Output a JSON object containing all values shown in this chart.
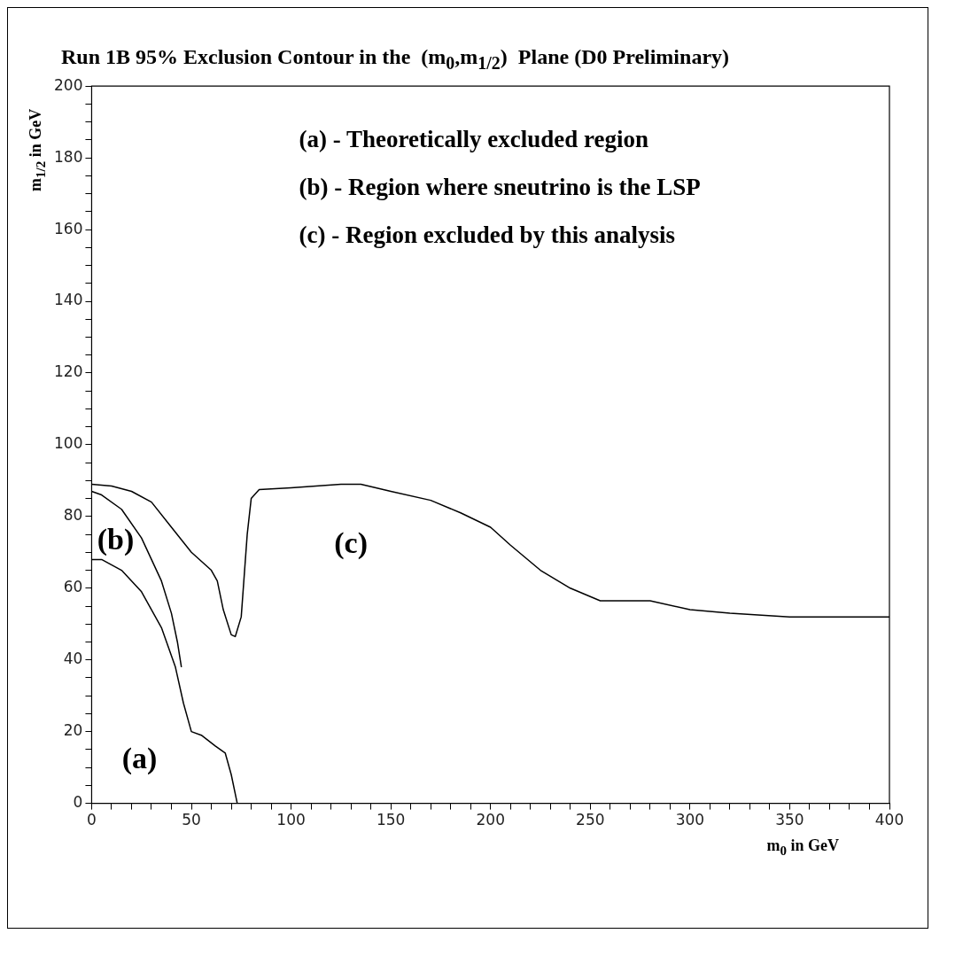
{
  "chart_data": {
    "type": "line",
    "title": "Run 1B 95% Exclusion Contour in the  (m$_{0}$,m$_{1/2}$)  Plane (D0 Preliminary)",
    "xlabel": "m$_{0}$ in GeV",
    "ylabel": "m$_{1/2}$ in GeV",
    "series": [
      {
        "color": "#000000",
        "x": [
          0,
          5,
          15,
          25,
          35,
          42,
          46,
          50,
          55,
          62,
          67,
          70,
          73
        ],
        "values": [
          68,
          68,
          65,
          59,
          49,
          38,
          28,
          20,
          19,
          16,
          14,
          8,
          0
        ]
      },
      {
        "color": "#000000",
        "x": [
          0,
          5,
          15,
          25,
          35,
          40,
          43,
          45
        ],
        "values": [
          87,
          86,
          82,
          74,
          62,
          53,
          45,
          38
        ]
      },
      {
        "color": "#000000",
        "x": [
          0,
          10,
          20,
          30,
          40,
          50,
          60,
          63,
          66,
          70,
          72,
          75,
          78,
          80,
          84,
          100,
          125,
          135,
          150,
          170,
          185,
          200,
          210,
          225,
          240,
          255,
          270,
          280,
          300,
          320,
          350,
          400
        ],
        "values": [
          89,
          88.5,
          87,
          84,
          77,
          70,
          65,
          62,
          54,
          47,
          46.5,
          52,
          75,
          85,
          87.5,
          88,
          89,
          89,
          87,
          84.5,
          81,
          77,
          72,
          65,
          60,
          56.5,
          56.5,
          56.5,
          54,
          53,
          52,
          52
        ]
      }
    ],
    "xlim": [
      0,
      400
    ],
    "ylim": [
      0,
      200
    ],
    "xticks": [
      0,
      {
        "value": 10,
        "label": null
      },
      {
        "value": 20,
        "label": null
      },
      {
        "value": 30,
        "label": null
      },
      {
        "value": 40,
        "label": null
      },
      50,
      {
        "value": 60,
        "label": null
      },
      {
        "value": 70,
        "label": null
      },
      {
        "value": 80,
        "label": null
      },
      {
        "value": 90,
        "label": null
      },
      100,
      {
        "value": 110,
        "label": null
      },
      {
        "value": 120,
        "label": null
      },
      {
        "value": 130,
        "label": null
      },
      {
        "value": 140,
        "label": null
      },
      150,
      {
        "value": 160,
        "label": null
      },
      {
        "value": 170,
        "label": null
      },
      {
        "value": 180,
        "label": null
      },
      {
        "value": 190,
        "label": null
      },
      200,
      {
        "value": 210,
        "label": null
      },
      {
        "value": 220,
        "label": null
      },
      {
        "value": 230,
        "label": null
      },
      {
        "value": 240,
        "label": null
      },
      250,
      {
        "value": 260,
        "label": null
      },
      {
        "value": 270,
        "label": null
      },
      {
        "value": 280,
        "label": null
      },
      {
        "value": 290,
        "label": null
      },
      300,
      {
        "value": 310,
        "label": null
      },
      {
        "value": 320,
        "label": null
      },
      {
        "value": 330,
        "label": null
      },
      {
        "value": 340,
        "label": null
      },
      350,
      {
        "value": 360,
        "label": null
      },
      {
        "value": 370,
        "label": null
      },
      {
        "value": 380,
        "label": null
      },
      {
        "value": 390,
        "label": null
      },
      400
    ],
    "yticks": [
      0,
      {
        "value": 5,
        "label": null
      },
      {
        "value": 10,
        "label": null
      },
      {
        "value": 15,
        "label": null
      },
      20,
      {
        "value": 25,
        "label": null
      },
      {
        "value": 30,
        "label": null
      },
      {
        "value": 35,
        "label": null
      },
      40,
      {
        "value": 45,
        "label": null
      },
      {
        "value": 50,
        "label": null
      },
      {
        "value": 55,
        "label": null
      },
      60,
      {
        "value": 65,
        "label": null
      },
      {
        "value": 70,
        "label": null
      },
      {
        "value": 75,
        "label": null
      },
      80,
      {
        "value": 85,
        "label": null
      },
      {
        "value": 90,
        "label": null
      },
      {
        "value": 95,
        "label": null
      },
      100,
      {
        "value": 105,
        "label": null
      },
      {
        "value": 110,
        "label": null
      },
      {
        "value": 115,
        "label": null
      },
      120,
      {
        "value": 125,
        "label": null
      },
      {
        "value": 130,
        "label": null
      },
      {
        "value": 135,
        "label": null
      },
      140,
      {
        "value": 145,
        "label": null
      },
      {
        "value": 150,
        "label": null
      },
      {
        "value": 155,
        "label": null
      },
      160,
      {
        "value": 165,
        "label": null
      },
      {
        "value": 170,
        "label": null
      },
      {
        "value": 175,
        "label": null
      },
      180,
      {
        "value": 185,
        "label": null
      },
      {
        "value": 190,
        "label": null
      },
      {
        "value": 195,
        "label": null
      },
      200
    ],
    "grid": false,
    "legend": false,
    "marker": "none",
    "line_style": "solid",
    "annotations": [
      "(a) - Theoretically excluded region",
      "(b) - Region where sneutrino is the LSP",
      "(c) - Region excluded by this analysis",
      "(a)",
      "(b)",
      "(c)"
    ]
  }
}
